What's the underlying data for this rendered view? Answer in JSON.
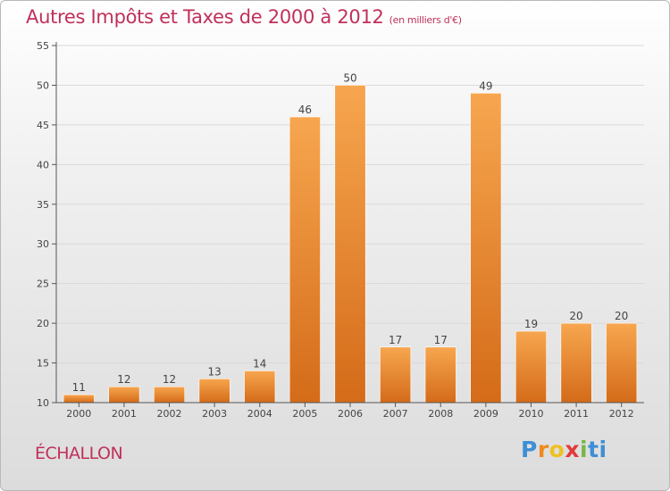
{
  "title": "Autres Impôts et Taxes de 2000 à 2012",
  "title_unit": "(en milliers d'€)",
  "commune": "ÉCHALLON",
  "logo": {
    "letters": [
      "P",
      "r",
      "o",
      "x",
      "i",
      "t",
      "i"
    ]
  },
  "colors": {
    "title": "#c0305a",
    "bar_light": "#f7a64f",
    "bar_dark": "#d46b19",
    "axis": "#555555",
    "grid": "#d9d9d9"
  },
  "chart_data": {
    "type": "bar",
    "categories": [
      "2000",
      "2001",
      "2002",
      "2003",
      "2004",
      "2005",
      "2006",
      "2007",
      "2008",
      "2009",
      "2010",
      "2011",
      "2012"
    ],
    "values": [
      11,
      12,
      12,
      13,
      14,
      46,
      50,
      17,
      17,
      49,
      19,
      20,
      20
    ],
    "title": "Autres Impôts et Taxes de 2000 à 2012",
    "ylim": [
      10,
      55
    ],
    "yticks": [
      10,
      15,
      20,
      25,
      30,
      35,
      40,
      45,
      50,
      55
    ],
    "grid": true,
    "legend": "none"
  }
}
